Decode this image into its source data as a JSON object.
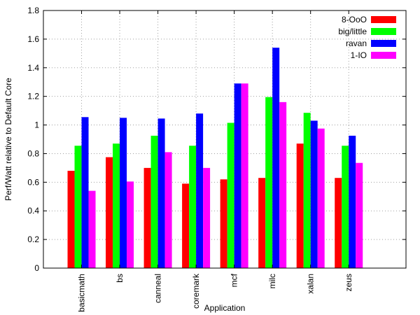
{
  "chart_data": {
    "type": "bar",
    "title": "",
    "xlabel": "Application",
    "ylabel": "Perf/Watt relative to Default Core",
    "ylim": [
      0,
      1.8
    ],
    "yticks": [
      0,
      0.2,
      0.4,
      0.6,
      0.8,
      1,
      1.2,
      1.4,
      1.6,
      1.8
    ],
    "grid": true,
    "legend_position": "top-right",
    "categories": [
      "basicmath",
      "bs",
      "canneal",
      "coremark",
      "mcf",
      "milc",
      "xalan",
      "zeus"
    ],
    "series": [
      {
        "name": "8-OoO",
        "color": "#ff0000",
        "values": [
          0.68,
          0.775,
          0.7,
          0.59,
          0.62,
          0.63,
          0.87,
          0.63
        ]
      },
      {
        "name": "big/little",
        "color": "#00ff00",
        "values": [
          0.855,
          0.87,
          0.925,
          0.855,
          1.015,
          1.195,
          1.085,
          0.855
        ]
      },
      {
        "name": "ravan",
        "color": "#0000ff",
        "values": [
          1.055,
          1.05,
          1.045,
          1.08,
          1.29,
          1.54,
          1.03,
          0.925
        ]
      },
      {
        "name": "1-IO",
        "color": "#ff00ff",
        "values": [
          0.54,
          0.605,
          0.81,
          0.7,
          1.29,
          1.16,
          0.975,
          0.735
        ]
      }
    ]
  }
}
